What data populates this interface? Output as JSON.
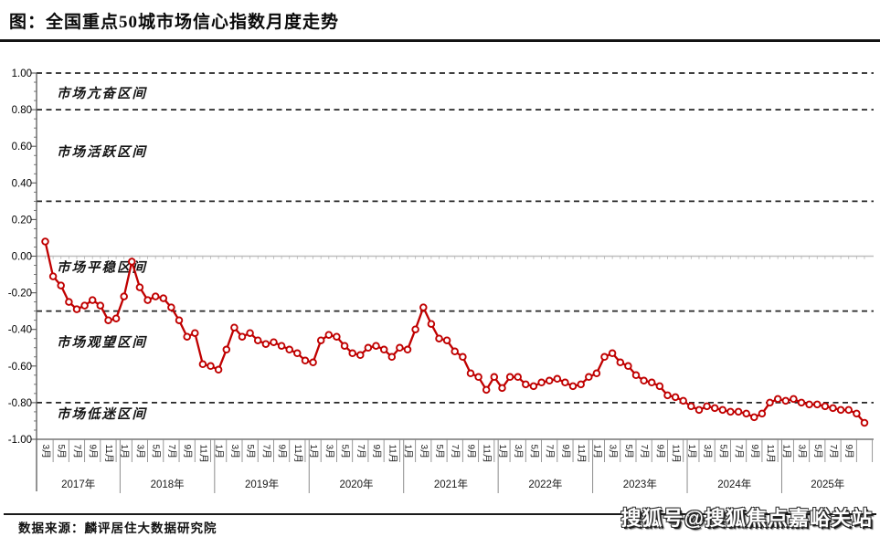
{
  "page": {
    "title": "图：全国重点50城市场信心指数月度走势",
    "source_note": "数据来源：麟评居住大数据研究院",
    "watermark": "搜狐号@搜狐焦点嘉峪关站"
  },
  "chart_data": {
    "type": "line",
    "title": "全国重点50城市场信心指数月度走势",
    "xlabel": "",
    "ylabel": "",
    "ylim": [
      -1.0,
      1.0
    ],
    "grid": {
      "zero_line": true,
      "zone_boundaries_dashed": true
    },
    "legend_position": "none",
    "y_tick_labels": [
      "1.00",
      "0.80",
      "0.60",
      "0.40",
      "0.20",
      "0.00",
      "-0.20",
      "-0.40",
      "-0.60",
      "-0.80",
      "-1.00"
    ],
    "zone_boundaries": [
      1.0,
      0.8,
      0.3,
      -0.3,
      -0.8
    ],
    "zones": [
      {
        "label": "市场亢奋区间",
        "label_y": 0.89
      },
      {
        "label": "市场活跃区间",
        "label_y": 0.57
      },
      {
        "label": "市场平稳区间",
        "label_y": -0.06
      },
      {
        "label": "市场观望区间",
        "label_y": -0.47
      },
      {
        "label": "市场低迷区间",
        "label_y": -0.86
      }
    ],
    "x_start": "2017年3月",
    "x_end": "2025年11月",
    "x_tick_groups": [
      {
        "year": "2017年",
        "months": [
          "3月",
          "5月",
          "7月",
          "9月",
          "11月"
        ]
      },
      {
        "year": "2018年",
        "months": [
          "1月",
          "3月",
          "5月",
          "7月",
          "9月",
          "11月"
        ]
      },
      {
        "year": "2019年",
        "months": [
          "1月",
          "3月",
          "5月",
          "7月",
          "9月",
          "11月"
        ]
      },
      {
        "year": "2020年",
        "months": [
          "1月",
          "3月",
          "5月",
          "7月",
          "9月",
          "11月"
        ]
      },
      {
        "year": "2021年",
        "months": [
          "1月",
          "3月",
          "5月",
          "7月",
          "9月",
          "11月"
        ]
      },
      {
        "year": "2022年",
        "months": [
          "1月",
          "3月",
          "5月",
          "7月",
          "9月",
          "11月"
        ]
      },
      {
        "year": "2023年",
        "months": [
          "1月",
          "3月",
          "5月",
          "7月",
          "9月",
          "11月"
        ]
      },
      {
        "year": "2024年",
        "months": [
          "1月",
          "3月",
          "5月",
          "7月",
          "9月",
          "11月"
        ]
      },
      {
        "year": "2025年",
        "months": [
          "1月",
          "3月",
          "5月",
          "7月",
          "9月"
        ]
      }
    ],
    "series": [
      {
        "name": "市场信心指数",
        "color": "#c00000",
        "marker": "open-circle",
        "start_month": "2017-03",
        "monthly_values": [
          0.08,
          -0.11,
          -0.16,
          -0.25,
          -0.29,
          -0.27,
          -0.24,
          -0.27,
          -0.35,
          -0.34,
          -0.22,
          -0.03,
          -0.17,
          -0.24,
          -0.22,
          -0.23,
          -0.28,
          -0.35,
          -0.44,
          -0.42,
          -0.59,
          -0.6,
          -0.62,
          -0.51,
          -0.39,
          -0.44,
          -0.42,
          -0.46,
          -0.48,
          -0.47,
          -0.49,
          -0.51,
          -0.53,
          -0.57,
          -0.58,
          -0.46,
          -0.43,
          -0.44,
          -0.49,
          -0.53,
          -0.54,
          -0.5,
          -0.49,
          -0.51,
          -0.55,
          -0.5,
          -0.51,
          -0.4,
          -0.28,
          -0.37,
          -0.45,
          -0.46,
          -0.52,
          -0.55,
          -0.64,
          -0.66,
          -0.73,
          -0.66,
          -0.72,
          -0.66,
          -0.66,
          -0.7,
          -0.71,
          -0.69,
          -0.68,
          -0.67,
          -0.69,
          -0.71,
          -0.7,
          -0.66,
          -0.64,
          -0.55,
          -0.53,
          -0.58,
          -0.6,
          -0.65,
          -0.68,
          -0.69,
          -0.71,
          -0.76,
          -0.77,
          -0.79,
          -0.82,
          -0.84,
          -0.82,
          -0.83,
          -0.84,
          -0.85,
          -0.85,
          -0.86,
          -0.88,
          -0.86,
          -0.8,
          -0.78,
          -0.79,
          -0.78,
          -0.8,
          -0.81,
          -0.81,
          -0.82,
          -0.83,
          -0.84,
          -0.84,
          -0.86,
          -0.91
        ]
      }
    ],
    "colors": {
      "line": "#c00000",
      "dashed_boundary": "#262626",
      "zero_line": "#bfbfbf",
      "axis": "#595959"
    }
  }
}
